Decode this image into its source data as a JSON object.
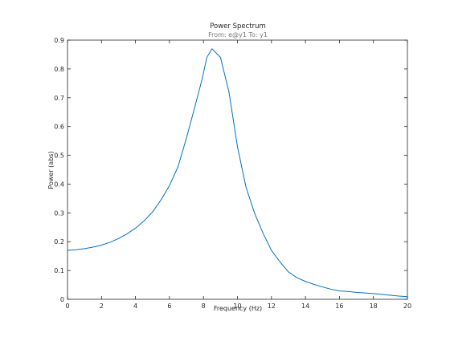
{
  "chart_data": {
    "type": "line",
    "title": "Power Spectrum",
    "subtitle": "From: e@y1  To: y1",
    "xlabel": "Frequency  (Hz)",
    "ylabel": "Power (abs)",
    "xlim": [
      0,
      20
    ],
    "ylim": [
      0,
      0.9
    ],
    "xticks": [
      "0",
      "2",
      "4",
      "6",
      "8",
      "10",
      "12",
      "14",
      "16",
      "18",
      "20"
    ],
    "yticks": [
      "0",
      "0.1",
      "0.2",
      "0.3",
      "0.4",
      "0.5",
      "0.6",
      "0.7",
      "0.8",
      "0.9"
    ],
    "grid": false,
    "series": [
      {
        "color": "#0072bd",
        "x": [
          0,
          0.5,
          1,
          1.5,
          2,
          2.5,
          3,
          3.5,
          4,
          4.5,
          5,
          5.5,
          6,
          6.5,
          7,
          7.5,
          7.9,
          8.2,
          8.5,
          9,
          9.5,
          10,
          10.5,
          11,
          11.5,
          12,
          12.5,
          13,
          13.5,
          14,
          14.5,
          15,
          15.5,
          16,
          16.5,
          17,
          17.5,
          18,
          18.5,
          19,
          19.5,
          20
        ],
        "y": [
          0.17,
          0.172,
          0.176,
          0.181,
          0.188,
          0.198,
          0.211,
          0.227,
          0.247,
          0.272,
          0.303,
          0.345,
          0.395,
          0.46,
          0.56,
          0.67,
          0.76,
          0.84,
          0.87,
          0.84,
          0.72,
          0.53,
          0.39,
          0.3,
          0.23,
          0.17,
          0.13,
          0.095,
          0.075,
          0.062,
          0.052,
          0.043,
          0.035,
          0.029,
          0.027,
          0.024,
          0.022,
          0.02,
          0.017,
          0.014,
          0.011,
          0.009
        ]
      }
    ]
  }
}
